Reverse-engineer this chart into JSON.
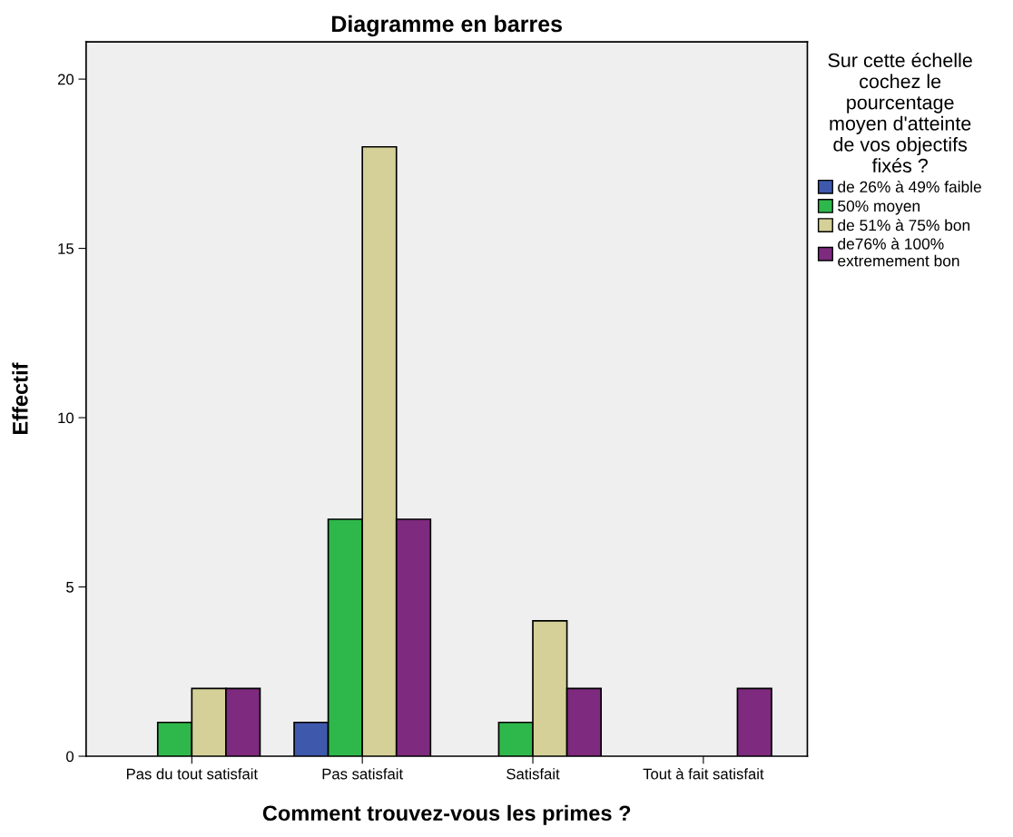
{
  "chart_data": {
    "type": "bar",
    "title": "Diagramme en barres",
    "xlabel": "Comment trouvez-vous les primes ?",
    "ylabel": "Effectif",
    "legend_title": "Sur cette échelle\ncochez le\npourcentage\nmoyen d'atteinte\nde vos objectifs\nfixés ?",
    "categories": [
      "Pas du tout satisfait",
      "Pas satisfait",
      "Satisfait",
      "Tout à fait satisfait"
    ],
    "series": [
      {
        "name": "de 26% à 49% faible",
        "color": "#3e58ac",
        "values": [
          null,
          1,
          null,
          null
        ]
      },
      {
        "name": "50% moyen",
        "color": "#2eb84b",
        "values": [
          1,
          7,
          1,
          null
        ]
      },
      {
        "name": "de 51% à 75% bon",
        "color": "#d5d097",
        "values": [
          2,
          18,
          4,
          null
        ]
      },
      {
        "name": "de76% à 100%\nextremement bon",
        "color": "#7e2a7e",
        "values": [
          2,
          7,
          2,
          2
        ]
      }
    ],
    "ylim": [
      0,
      21.1
    ],
    "yticks": [
      0,
      5,
      10,
      15,
      20
    ],
    "grid": false,
    "legend": "right"
  }
}
